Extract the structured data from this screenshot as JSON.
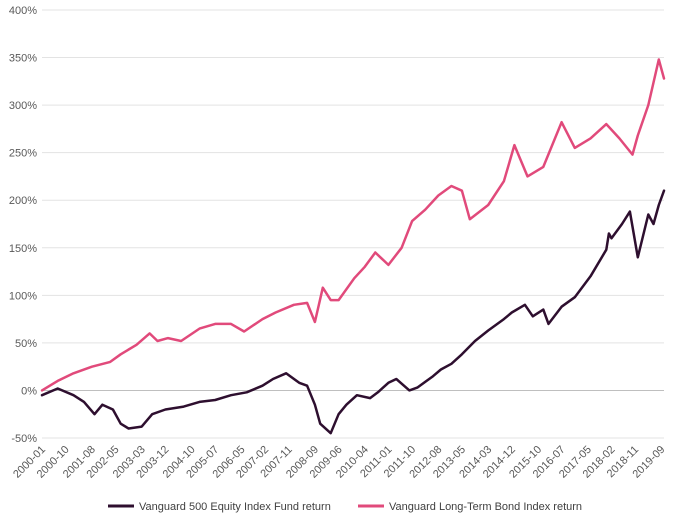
{
  "chart_data": {
    "type": "line",
    "title": "",
    "xlabel": "",
    "ylabel": "",
    "ylim": [
      -50,
      400
    ],
    "yticks": [
      "-50%",
      "0%",
      "50%",
      "100%",
      "150%",
      "200%",
      "250%",
      "300%",
      "350%",
      "400%"
    ],
    "xticks": [
      "2000-01",
      "2000-10",
      "2001-08",
      "2002-05",
      "2003-03",
      "2003-12",
      "2004-10",
      "2005-07",
      "2006-05",
      "2007-02",
      "2007-11",
      "2008-09",
      "2009-06",
      "2010-04",
      "2011-01",
      "2011-10",
      "2012-08",
      "2013-05",
      "2014-03",
      "2014-12",
      "2015-10",
      "2016-07",
      "2017-05",
      "2018-02",
      "2018-11",
      "2019-09"
    ],
    "grid": true,
    "legend_position": "bottom",
    "series": [
      {
        "name": "Vanguard 500 Equity Index Fund return",
        "color": "#2e0f2f",
        "x": [
          "2000-01",
          "2000-07",
          "2001-01",
          "2001-05",
          "2001-09",
          "2001-12",
          "2002-04",
          "2002-07",
          "2002-10",
          "2003-03",
          "2003-07",
          "2003-12",
          "2004-07",
          "2005-01",
          "2005-07",
          "2006-01",
          "2006-07",
          "2007-01",
          "2007-05",
          "2007-10",
          "2008-03",
          "2008-06",
          "2008-09",
          "2008-11",
          "2009-03",
          "2009-06",
          "2009-09",
          "2010-01",
          "2010-06",
          "2010-09",
          "2011-01",
          "2011-04",
          "2011-09",
          "2011-12",
          "2012-06",
          "2012-09",
          "2013-01",
          "2013-05",
          "2013-10",
          "2014-03",
          "2014-09",
          "2014-12",
          "2015-05",
          "2015-08",
          "2015-12",
          "2016-02",
          "2016-07",
          "2016-12",
          "2017-06",
          "2017-12",
          "2018-01",
          "2018-02",
          "2018-06",
          "2018-09",
          "2018-12",
          "2019-04",
          "2019-06",
          "2019-08",
          "2019-10"
        ],
        "values": [
          -5,
          2,
          -5,
          -12,
          -25,
          -15,
          -20,
          -35,
          -40,
          -38,
          -25,
          -20,
          -17,
          -12,
          -10,
          -5,
          -2,
          5,
          12,
          18,
          8,
          5,
          -15,
          -35,
          -45,
          -25,
          -15,
          -5,
          -8,
          -2,
          8,
          12,
          0,
          3,
          15,
          22,
          28,
          38,
          52,
          63,
          75,
          82,
          90,
          78,
          85,
          70,
          88,
          98,
          120,
          148,
          165,
          160,
          175,
          188,
          140,
          185,
          175,
          195,
          210
        ]
      },
      {
        "name": "Vanguard Long-Term Bond Index return",
        "color": "#e14a7b",
        "x": [
          "2000-01",
          "2000-07",
          "2001-01",
          "2001-08",
          "2002-03",
          "2002-07",
          "2003-01",
          "2003-06",
          "2003-09",
          "2004-01",
          "2004-06",
          "2005-01",
          "2005-07",
          "2006-01",
          "2006-06",
          "2007-01",
          "2007-06",
          "2008-01",
          "2008-06",
          "2008-09",
          "2008-12",
          "2009-03",
          "2009-06",
          "2009-12",
          "2010-04",
          "2010-08",
          "2011-01",
          "2011-06",
          "2011-10",
          "2012-03",
          "2012-08",
          "2013-01",
          "2013-05",
          "2013-08",
          "2014-03",
          "2014-09",
          "2015-01",
          "2015-06",
          "2015-12",
          "2016-07",
          "2016-12",
          "2017-06",
          "2017-12",
          "2018-05",
          "2018-10",
          "2018-12",
          "2019-04",
          "2019-08",
          "2019-10"
        ],
        "values": [
          0,
          10,
          18,
          25,
          30,
          38,
          48,
          60,
          52,
          55,
          52,
          65,
          70,
          70,
          62,
          75,
          82,
          90,
          92,
          72,
          108,
          95,
          95,
          118,
          130,
          145,
          132,
          150,
          178,
          190,
          205,
          215,
          210,
          180,
          195,
          220,
          258,
          225,
          235,
          282,
          255,
          265,
          280,
          265,
          248,
          268,
          300,
          348,
          328
        ]
      }
    ]
  }
}
